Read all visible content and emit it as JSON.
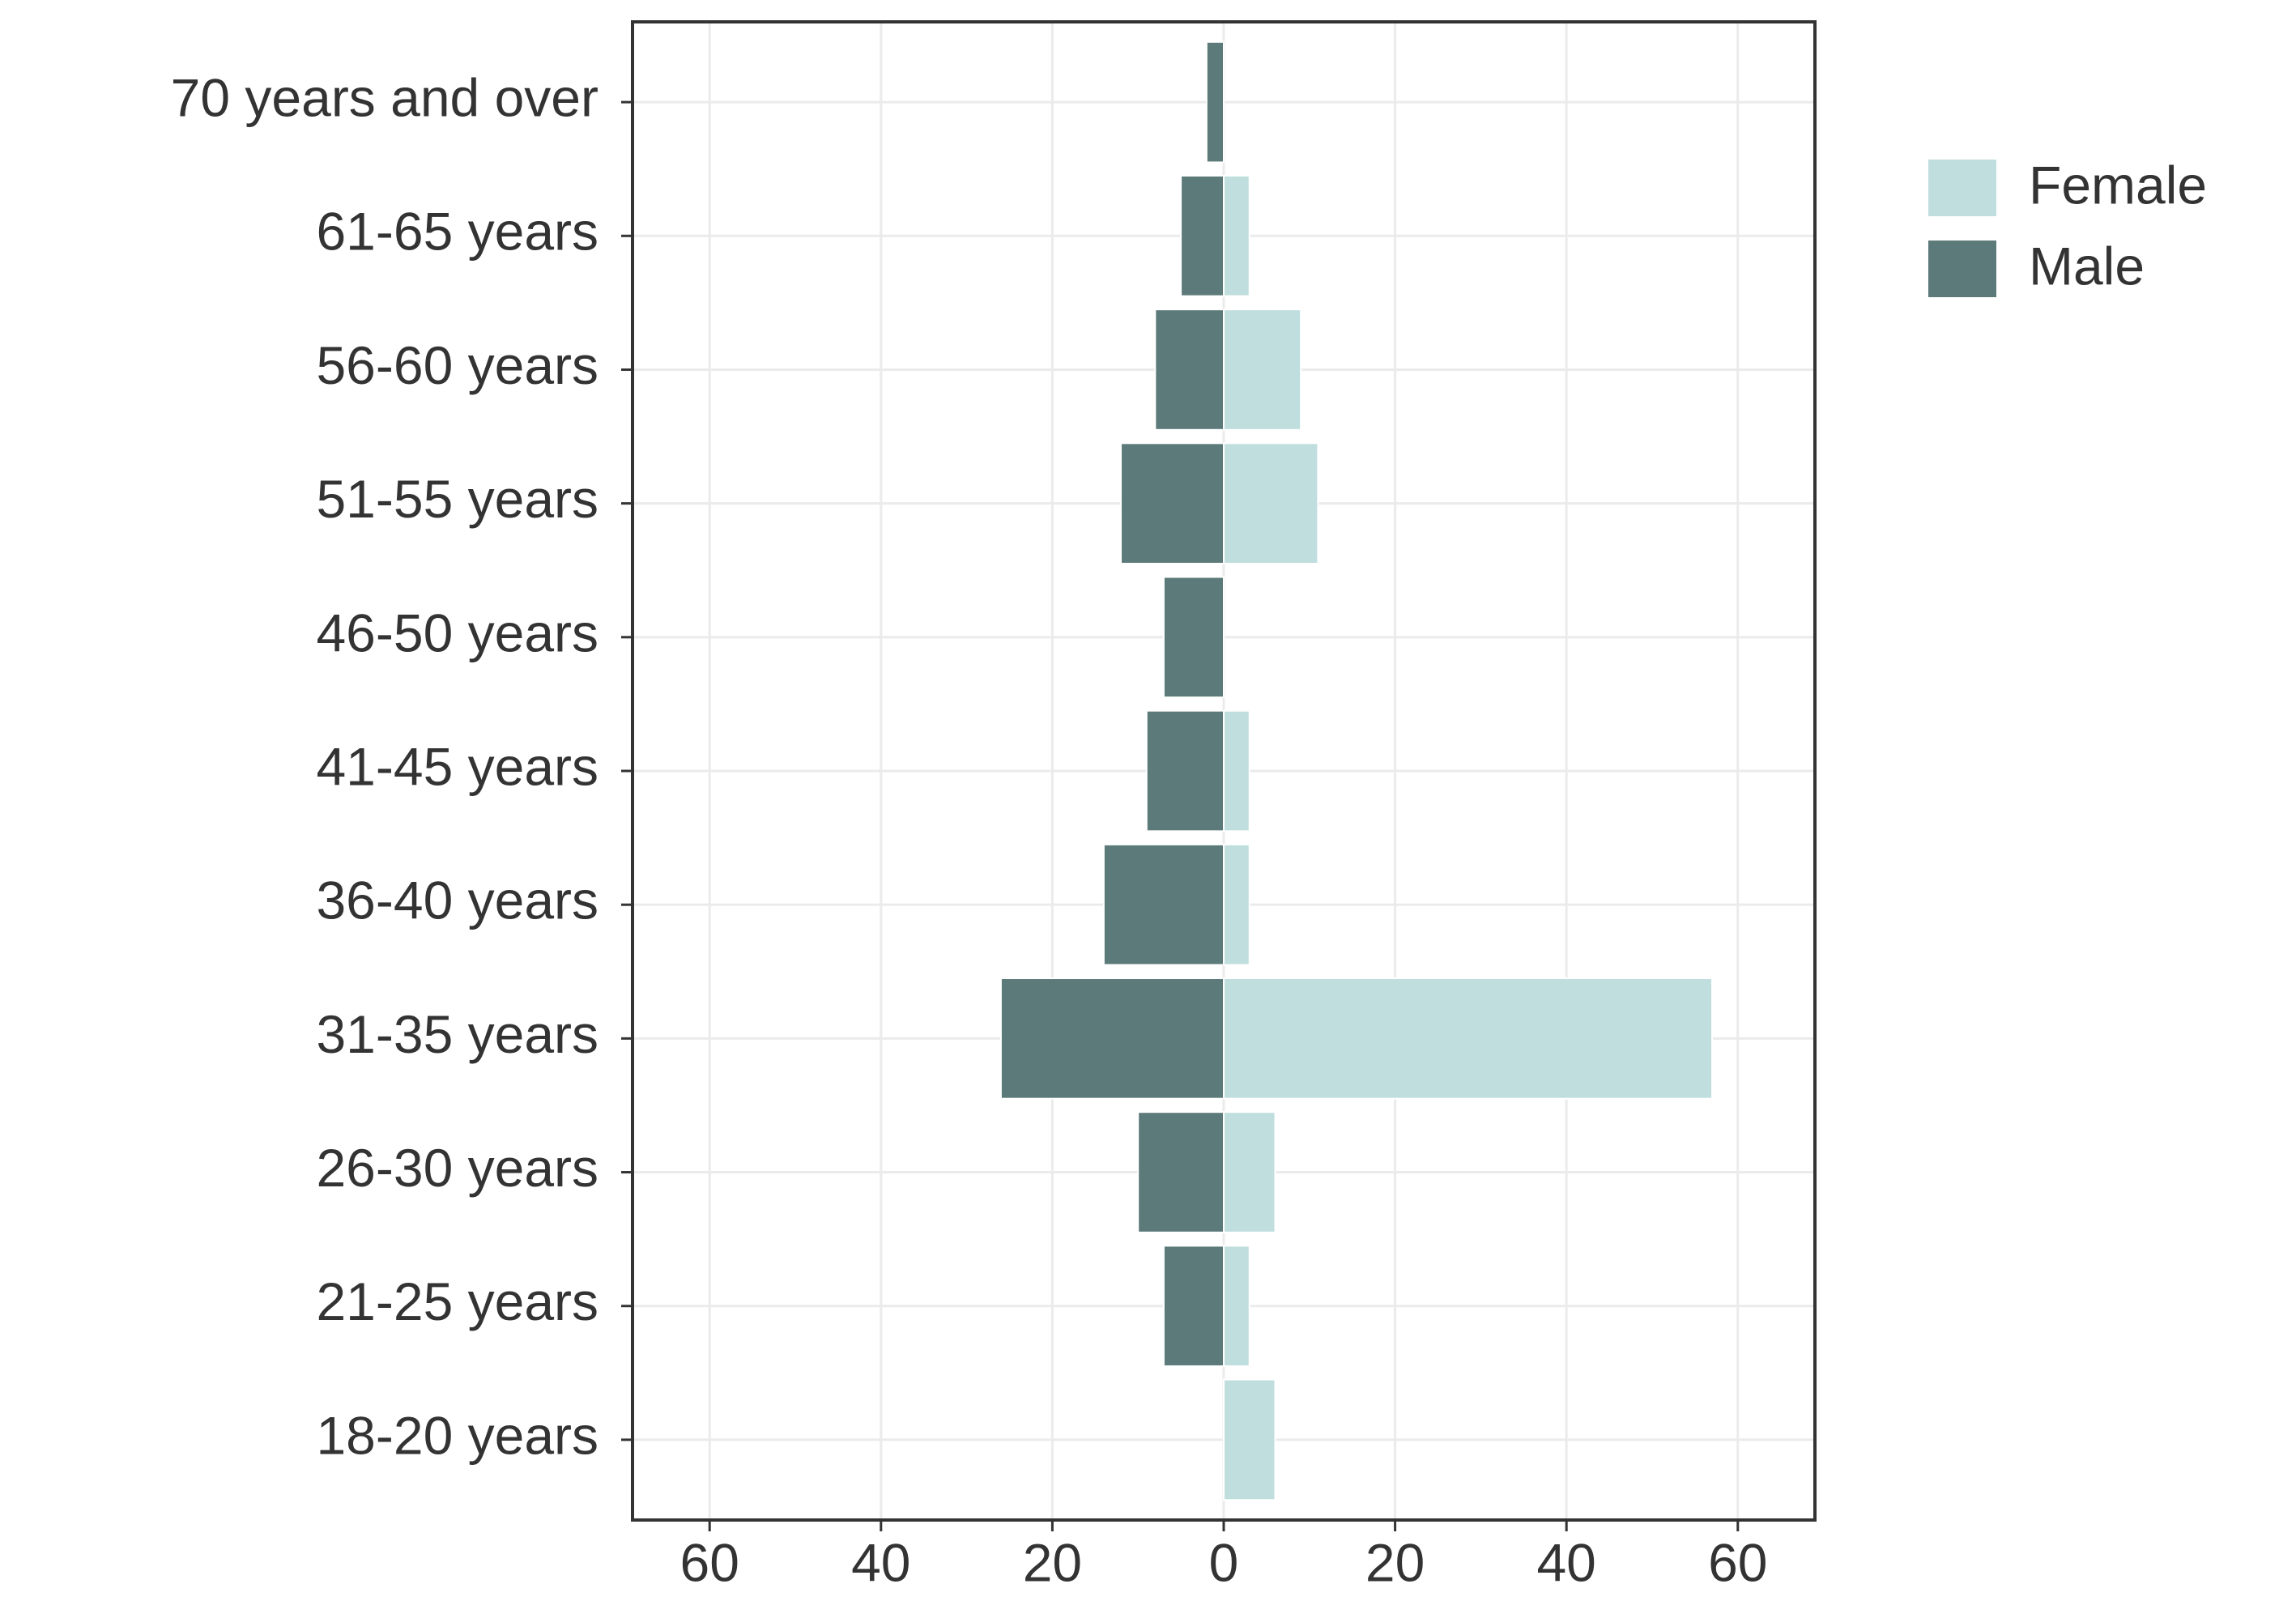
{
  "chart_data": {
    "type": "pyramid",
    "categories": [
      "70 years and over",
      "61-65 years",
      "56-60 years",
      "51-55 years",
      "46-50 years",
      "41-45 years",
      "36-40 years",
      "31-35 years",
      "26-30 years",
      "21-25 years",
      "18-20 years"
    ],
    "series": [
      {
        "name": "Female",
        "color": "#bfdedd",
        "values": [
          0,
          3,
          9,
          11,
          0,
          3,
          3,
          57,
          6,
          3,
          6
        ]
      },
      {
        "name": "Male",
        "color": "#5c7a79",
        "values": [
          -2,
          -5,
          -8,
          -12,
          -7,
          -9,
          -14,
          -26,
          -10,
          -7,
          0
        ]
      }
    ],
    "xlim": [
      -69,
      69
    ],
    "xticks": [
      {
        "value": -60,
        "label": "60"
      },
      {
        "value": -40,
        "label": "40"
      },
      {
        "value": -20,
        "label": "20"
      },
      0,
      20,
      40,
      60
    ],
    "grid": true
  }
}
